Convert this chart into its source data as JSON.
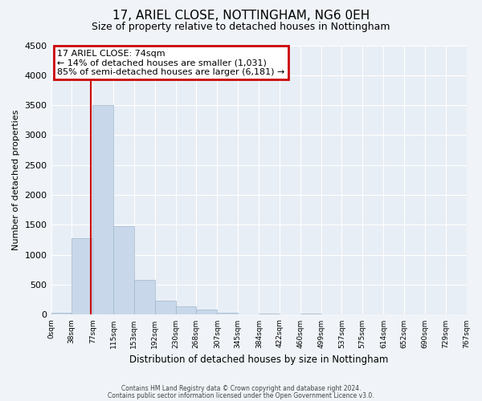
{
  "title_line1": "17, ARIEL CLOSE, NOTTINGHAM, NG6 0EH",
  "title_line2": "Size of property relative to detached houses in Nottingham",
  "xlabel": "Distribution of detached houses by size in Nottingham",
  "ylabel": "Number of detached properties",
  "bin_edges": [
    0,
    38,
    77,
    115,
    153,
    192,
    230,
    268,
    307,
    345,
    384,
    422,
    460,
    499,
    537,
    575,
    614,
    652,
    690,
    729,
    767
  ],
  "bar_heights": [
    30,
    1280,
    3500,
    1480,
    580,
    240,
    140,
    80,
    30,
    0,
    20,
    0,
    20,
    0,
    0,
    0,
    0,
    0,
    0,
    0
  ],
  "bar_color": "#c8d8ea",
  "bar_edge_color": "#a0b8cc",
  "property_size": 74,
  "property_line_color": "#cc0000",
  "annotation_box_color": "#cc0000",
  "annotation_text_line1": "17 ARIEL CLOSE: 74sqm",
  "annotation_text_line2": "← 14% of detached houses are smaller (1,031)",
  "annotation_text_line3": "85% of semi-detached houses are larger (6,181) →",
  "ylim": [
    0,
    4500
  ],
  "yticks": [
    0,
    500,
    1000,
    1500,
    2000,
    2500,
    3000,
    3500,
    4000,
    4500
  ],
  "tick_labels": [
    "0sqm",
    "38sqm",
    "77sqm",
    "115sqm",
    "153sqm",
    "192sqm",
    "230sqm",
    "268sqm",
    "307sqm",
    "345sqm",
    "384sqm",
    "422sqm",
    "460sqm",
    "499sqm",
    "537sqm",
    "575sqm",
    "614sqm",
    "652sqm",
    "690sqm",
    "729sqm",
    "767sqm"
  ],
  "footer_line1": "Contains HM Land Registry data © Crown copyright and database right 2024.",
  "footer_line2": "Contains public sector information licensed under the Open Government Licence v3.0.",
  "background_color": "#f0f4f8",
  "plot_background_color": "#e8eef5",
  "grid_color": "#ffffff"
}
